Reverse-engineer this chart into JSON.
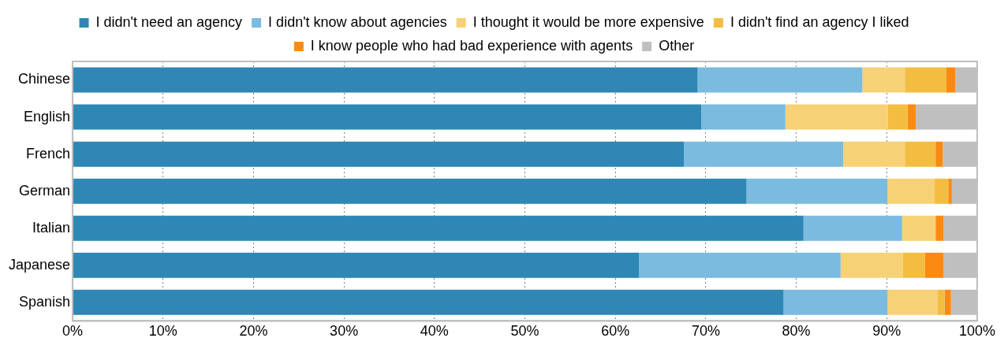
{
  "chart_data": {
    "type": "bar",
    "orientation": "horizontal",
    "stacked": true,
    "categories": [
      "Chinese",
      "English",
      "French",
      "German",
      "Italian",
      "Japanese",
      "Spanish"
    ],
    "series": [
      {
        "name": "I didn't need an agency",
        "color": "#2e87b5",
        "values": [
          69.1,
          69.5,
          67.6,
          74.5,
          80.8,
          62.6,
          78.6
        ]
      },
      {
        "name": "I didn't know about agencies",
        "color": "#7abbdf",
        "values": [
          18.2,
          9.3,
          17.6,
          15.6,
          10.9,
          22.3,
          11.5
        ]
      },
      {
        "name": "I thought it would be more expensive",
        "color": "#f7d175",
        "values": [
          4.7,
          11.3,
          6.8,
          5.2,
          3.7,
          6.9,
          5.5
        ]
      },
      {
        "name": "I didn't find an agency I liked",
        "color": "#f3bd42",
        "values": [
          4.6,
          2.2,
          3.4,
          1.5,
          0,
          2.4,
          0.8
        ]
      },
      {
        "name": "I know people who had bad experience with agents",
        "color": "#fb8a12",
        "values": [
          1.0,
          0.9,
          0.8,
          0.4,
          0.9,
          2.1,
          0.7
        ]
      },
      {
        "name": "Other",
        "color": "#bfbfbf",
        "values": [
          2.4,
          6.8,
          3.8,
          2.8,
          3.7,
          3.7,
          2.9
        ]
      }
    ],
    "xlim": [
      0,
      100
    ],
    "xticks": [
      {
        "value": 0,
        "label": "0%"
      },
      {
        "value": 10,
        "label": "10%"
      },
      {
        "value": 20,
        "label": "20%"
      },
      {
        "value": 30,
        "label": "30%"
      },
      {
        "value": 40,
        "label": "40%"
      },
      {
        "value": 50,
        "label": "50%"
      },
      {
        "value": 60,
        "label": "60%"
      },
      {
        "value": 70,
        "label": "70%"
      },
      {
        "value": 80,
        "label": "80%"
      },
      {
        "value": 90,
        "label": "90%"
      },
      {
        "value": 100,
        "label": "100%"
      }
    ],
    "grid": "x",
    "legend": "top"
  }
}
